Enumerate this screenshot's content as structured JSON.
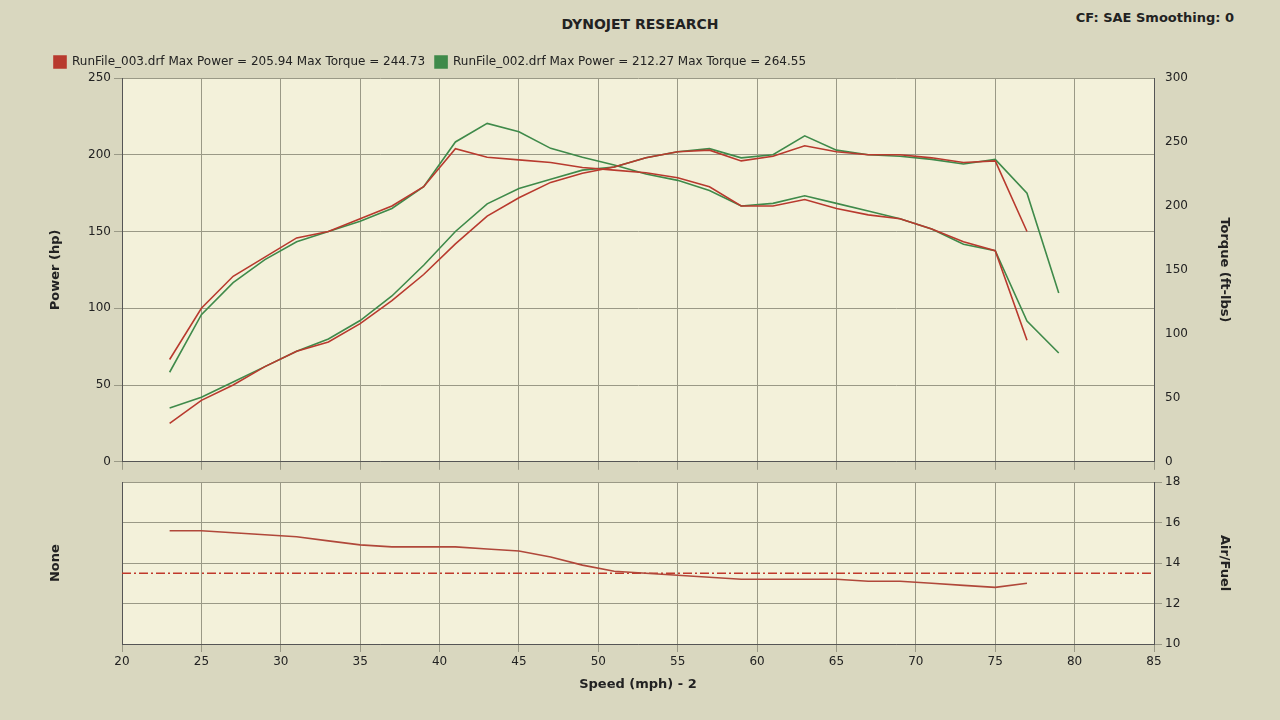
{
  "chart_data": [
    {
      "type": "line",
      "title": "DYNOJET RESEARCH",
      "annotations": [
        "CF: SAE  Smoothing: 0"
      ],
      "y_label": "Power (hp)",
      "y2_label": "Torque (ft-lbs)",
      "x": [
        23,
        25,
        27,
        29,
        31,
        33,
        35,
        37,
        39,
        41,
        43,
        45,
        47,
        49,
        51,
        53,
        55,
        57,
        59,
        61,
        63,
        65,
        67,
        69,
        71,
        73,
        75,
        77,
        79
      ],
      "xlim": [
        20,
        85
      ],
      "xticks": [
        20,
        25,
        30,
        35,
        40,
        45,
        50,
        55,
        60,
        65,
        70,
        75,
        80,
        85
      ],
      "ylim": [
        0,
        250
      ],
      "yticks": [
        0,
        50,
        100,
        150,
        200,
        250
      ],
      "y2lim": [
        0,
        300
      ],
      "y2ticks": [
        0,
        50,
        100,
        150,
        200,
        250,
        300
      ],
      "grid": true,
      "legend": "top",
      "tick_labels": "y",
      "series": [
        {
          "name": "RunFile_003.drf Max Power = 205.94 Max Torque = 244.73",
          "color": "#b83a2e",
          "values": [
            25,
            40,
            50,
            62,
            72,
            78,
            90,
            105,
            122,
            142,
            160,
            172,
            182,
            188,
            192,
            198,
            202,
            203,
            196,
            199,
            205.9,
            202,
            200,
            200,
            198,
            195,
            196,
            150,
            null
          ]
        },
        {
          "name": "RunFile_003.drf Max Power = 205.94 Max Torque = 244.73",
          "color": "#b83a2e",
          "axis": "y2",
          "values": [
            80,
            120,
            145,
            160,
            175,
            180,
            190,
            200,
            215,
            244.7,
            238,
            236,
            234,
            230,
            228,
            226,
            222,
            215,
            200,
            200,
            205,
            198,
            193,
            190,
            182,
            172,
            165,
            95,
            null
          ]
        },
        {
          "name": "RunFile_002.drf Max Power = 212.27 Max Torque = 264.55",
          "color": "#3f8a4a",
          "values": [
            35,
            42,
            52,
            62,
            72,
            80,
            92,
            108,
            128,
            150,
            168,
            178,
            184,
            190,
            192,
            198,
            202,
            204,
            198,
            200,
            212.3,
            203,
            200,
            199,
            197,
            194,
            197,
            175,
            110
          ]
        },
        {
          "name": "RunFile_002.drf Max Power = 212.27 Max Torque = 264.55",
          "color": "#3f8a4a",
          "axis": "y2",
          "values": [
            70,
            115,
            140,
            158,
            172,
            180,
            188,
            198,
            215,
            250,
            264.5,
            258,
            245,
            238,
            232,
            225,
            220,
            212,
            200,
            202,
            208,
            202,
            196,
            190,
            182,
            170,
            165,
            110,
            85
          ]
        }
      ]
    },
    {
      "type": "line",
      "x_label": "Speed (mph) - 2",
      "y_label": "None",
      "y2_label": "Air/Fuel",
      "x": [
        23,
        25,
        27,
        29,
        31,
        33,
        35,
        37,
        39,
        41,
        43,
        45,
        47,
        49,
        51,
        53,
        55,
        57,
        59,
        61,
        63,
        65,
        67,
        69,
        71,
        73,
        75,
        77
      ],
      "xlim": [
        20,
        85
      ],
      "xticks": [
        20,
        25,
        30,
        35,
        40,
        45,
        50,
        55,
        60,
        65,
        70,
        75,
        80,
        85
      ],
      "y2lim": [
        10,
        18
      ],
      "y2ticks": [
        10,
        12,
        14,
        16,
        18
      ],
      "grid": true,
      "series": [
        {
          "color": "#b0483a",
          "axis": "y2",
          "values": [
            15.6,
            15.6,
            15.5,
            15.4,
            15.3,
            15.1,
            14.9,
            14.8,
            14.8,
            14.8,
            14.7,
            14.6,
            14.3,
            13.9,
            13.6,
            13.5,
            13.4,
            13.3,
            13.2,
            13.2,
            13.2,
            13.2,
            13.1,
            13.1,
            13.0,
            12.9,
            12.8,
            13.0
          ]
        },
        {
          "color": "#c0392b",
          "axis": "y2",
          "line_style": "dashdot",
          "x": [
            20,
            85
          ],
          "values": [
            13.5,
            13.5
          ]
        }
      ]
    }
  ]
}
